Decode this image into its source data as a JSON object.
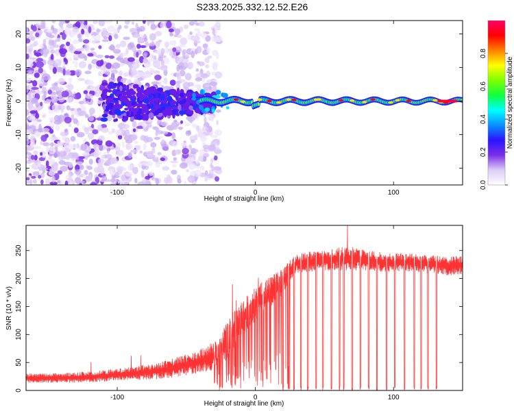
{
  "title": "S233.2025.332.12.52.E26",
  "chart_data": [
    {
      "type": "heatmap",
      "title": "S233.2025.332.12.52.E26",
      "xlabel": "Height of straight line (km)",
      "ylabel": "Frequency (Hz)",
      "xlim": [
        -166,
        150
      ],
      "ylim": [
        -25,
        24
      ],
      "xticks": [
        -100,
        0,
        100
      ],
      "xtick_labels": [
        "-100",
        "0",
        "100"
      ],
      "yticks": [
        -20,
        -10,
        0,
        10,
        20
      ],
      "ytick_labels": [
        "-20",
        "-10",
        "0",
        "10",
        "20"
      ],
      "description_of_signal": {
        "ridge_frequency_hz": 0,
        "ridge_start_km": -40,
        "ridge_end_km": 150,
        "noise_region_km": [
          -166,
          -40
        ]
      },
      "colorbar": {
        "label": "Normalized spectral amplitude",
        "range": [
          0,
          1
        ],
        "ticks": [
          0.0,
          0.2,
          0.4,
          0.6,
          0.8
        ],
        "tick_labels": [
          "0.0",
          "0.2",
          "0.4",
          "0.6",
          "0.8"
        ],
        "colormap": [
          "#ffffff",
          "#dccdf7",
          "#7a2ee8",
          "#2a14ff",
          "#0a90ff",
          "#00ffff",
          "#10ff40",
          "#7fff00",
          "#ffff00",
          "#ff8000",
          "#ff0000",
          "#ff0066"
        ]
      }
    },
    {
      "type": "line",
      "xlabel": "Height of straight line (km)",
      "ylabel": "SNR (10 * v/v)",
      "xlim": [
        -166,
        150
      ],
      "ylim": [
        0,
        295
      ],
      "xticks": [
        -100,
        0,
        100
      ],
      "xtick_labels": [
        "-100",
        "0",
        "100"
      ],
      "yticks": [
        0,
        50,
        100,
        150,
        200,
        250
      ],
      "ytick_labels": [
        "0",
        "50",
        "100",
        "150",
        "200",
        "250"
      ],
      "series": [
        {
          "name": "SNR",
          "color": "#ff3333",
          "x": [
            -166,
            -150,
            -130,
            -110,
            -90,
            -70,
            -60,
            -50,
            -40,
            -30,
            -25,
            -20,
            -15,
            -10,
            -5,
            0,
            5,
            10,
            15,
            20,
            25,
            30,
            40,
            50,
            60,
            70,
            80,
            90,
            100,
            110,
            120,
            130,
            140,
            150
          ],
          "y": [
            22,
            22,
            23,
            26,
            30,
            35,
            40,
            46,
            52,
            62,
            75,
            90,
            110,
            125,
            140,
            155,
            165,
            175,
            185,
            195,
            215,
            228,
            230,
            232,
            235,
            236,
            232,
            230,
            228,
            230,
            227,
            225,
            222,
            225
          ],
          "noise_amplitude": [
            14,
            14,
            15,
            17,
            20,
            25,
            28,
            32,
            36,
            42,
            50,
            55,
            60,
            60,
            55,
            55,
            50,
            45,
            42,
            40,
            30,
            30,
            30,
            32,
            35,
            35,
            30,
            30,
            28,
            28,
            28,
            28,
            28,
            28
          ]
        }
      ],
      "dropouts_x": [
        20,
        24,
        28,
        33,
        38,
        44,
        49,
        55,
        61,
        64,
        70,
        76,
        82,
        88,
        95,
        101,
        108,
        115,
        120,
        125,
        131
      ]
    }
  ]
}
